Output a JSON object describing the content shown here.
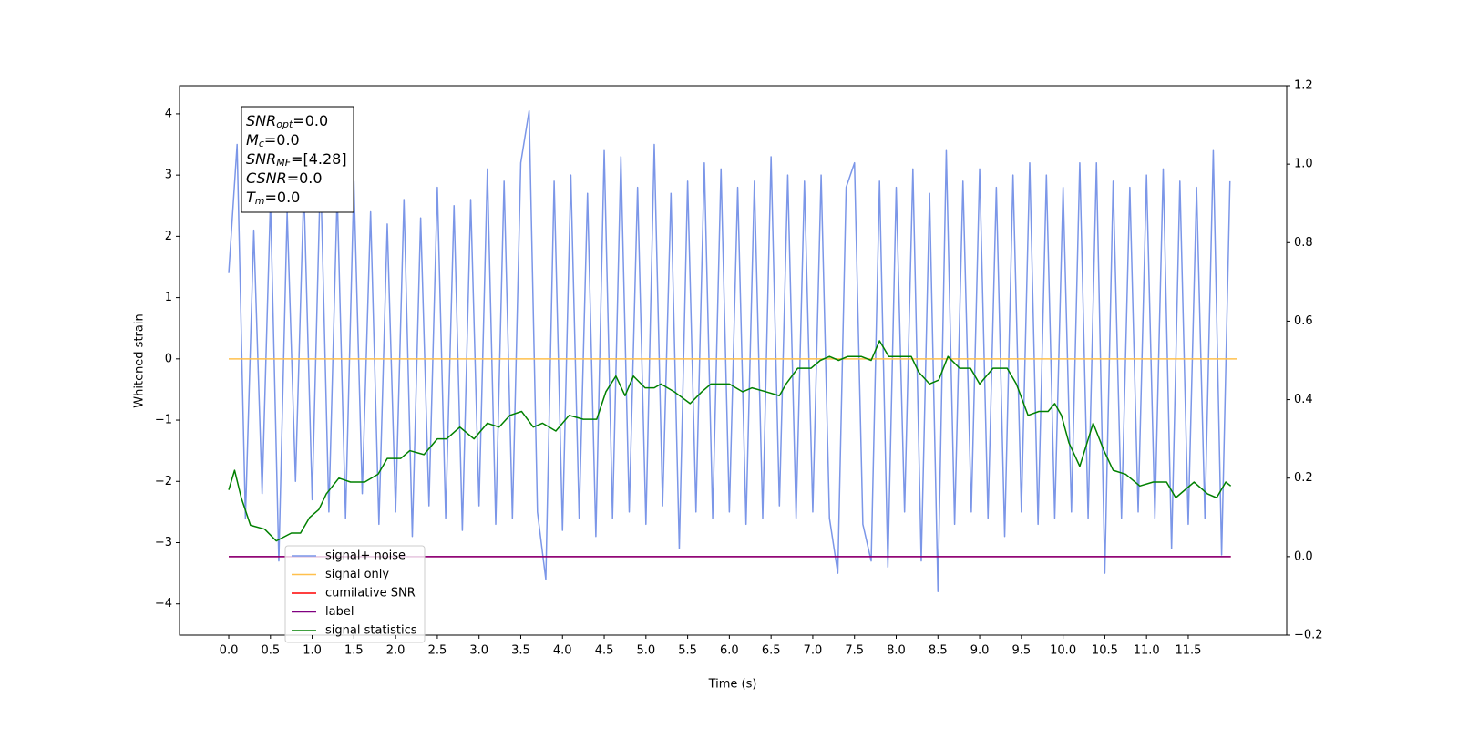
{
  "chart_data": {
    "type": "line",
    "xlabel": "Time (s)",
    "ylabel": "Whitened strain",
    "xlim": [
      -0.59,
      12.68
    ],
    "ylim": [
      -4.51,
      4.46
    ],
    "y2lim": [
      -0.2,
      1.2
    ],
    "xticks": [
      {
        "value": 0,
        "label": "0.0"
      },
      0.5,
      {
        "value": 1,
        "label": "1.0"
      },
      1.5,
      {
        "value": 2,
        "label": "2.0"
      },
      2.5,
      {
        "value": 3,
        "label": "3.0"
      },
      3.5,
      {
        "value": 4,
        "label": "4.0"
      },
      4.5,
      {
        "value": 5,
        "label": "5.0"
      },
      5.5,
      {
        "value": 6,
        "label": "6.0"
      },
      6.5,
      {
        "value": 7,
        "label": "7.0"
      },
      7.5,
      {
        "value": 8,
        "label": "8.0"
      },
      8.5,
      {
        "value": 9,
        "label": "9.0"
      },
      9.5,
      {
        "value": 10,
        "label": "10.0"
      },
      10.5,
      {
        "value": 11,
        "label": "11.0"
      },
      11.5
    ],
    "yticks": [
      {
        "value": -4,
        "label": "−4"
      },
      {
        "value": -3,
        "label": "−3"
      },
      {
        "value": -2,
        "label": "−2"
      },
      {
        "value": -1,
        "label": "−1"
      },
      0,
      1,
      2,
      3,
      4
    ],
    "y2ticks": [
      {
        "value": -0.2,
        "label": "−0.2"
      },
      {
        "value": 0,
        "label": "0.0"
      },
      0.2,
      0.4,
      0.6,
      0.8,
      {
        "value": 1,
        "label": "1.0"
      },
      1.2
    ],
    "legend": "lower left",
    "annotation": [
      {
        "main": "SNR",
        "sub": "opt",
        "rest": "=0.0"
      },
      {
        "main": "M",
        "sub": "c",
        "rest": "=0.0"
      },
      {
        "main": "SNR",
        "sub": "MF",
        "rest": "=[4.28]"
      },
      {
        "main": "CSNR",
        "sub": "",
        "rest": "=0.0"
      },
      {
        "main": "T",
        "sub": "m",
        "rest": "=0.0"
      }
    ],
    "series": [
      {
        "name": "signal+ noise",
        "color": "#7b96e8",
        "axis": "y",
        "x": [
          0,
          0.1,
          0.2,
          0.3,
          0.4,
          0.5,
          0.6,
          0.7,
          0.8,
          0.9,
          1,
          1.1,
          1.2,
          1.3,
          1.4,
          1.5,
          1.6,
          1.7,
          1.8,
          1.9,
          2,
          2.1,
          2.2,
          2.3,
          2.4,
          2.5,
          2.6,
          2.7,
          2.8,
          2.9,
          3,
          3.1,
          3.2,
          3.3,
          3.4,
          3.5,
          3.6,
          3.7,
          3.8,
          3.9,
          4,
          4.1,
          4.2,
          4.3,
          4.4,
          4.5,
          4.6,
          4.7,
          4.8,
          4.9,
          5,
          5.1,
          5.2,
          5.3,
          5.4,
          5.5,
          5.6,
          5.7,
          5.8,
          5.9,
          6,
          6.1,
          6.2,
          6.3,
          6.4,
          6.5,
          6.6,
          6.7,
          6.8,
          6.9,
          7,
          7.1,
          7.2,
          7.3,
          7.4,
          7.5,
          7.6,
          7.7,
          7.8,
          7.9,
          8,
          8.1,
          8.2,
          8.3,
          8.4,
          8.5,
          8.6,
          8.7,
          8.8,
          8.9,
          9,
          9.1,
          9.2,
          9.3,
          9.4,
          9.5,
          9.6,
          9.7,
          9.8,
          9.9,
          10,
          10.1,
          10.2,
          10.3,
          10.4,
          10.5,
          10.6,
          10.7,
          10.8,
          10.9,
          11,
          11.1,
          11.2,
          11.3,
          11.4,
          11.5,
          11.6,
          11.7,
          11.8,
          11.9,
          12
        ],
        "values": [
          1.4,
          3.5,
          -2.6,
          2.1,
          -2.2,
          2.6,
          -3.3,
          2.4,
          -2.0,
          2.8,
          -2.3,
          3.1,
          -2.5,
          2.7,
          -2.6,
          2.9,
          -2.2,
          2.4,
          -2.7,
          2.2,
          -2.5,
          2.6,
          -2.9,
          2.3,
          -2.4,
          2.8,
          -2.6,
          2.5,
          -2.8,
          2.6,
          -2.4,
          3.1,
          -2.7,
          2.9,
          -2.6,
          3.2,
          4.05,
          -2.5,
          -3.6,
          2.9,
          -2.8,
          3.0,
          -2.6,
          2.7,
          -2.9,
          3.4,
          -2.6,
          3.3,
          -2.5,
          2.8,
          -2.7,
          3.5,
          -2.4,
          2.7,
          -3.1,
          2.9,
          -2.5,
          3.2,
          -2.6,
          3.1,
          -2.5,
          2.8,
          -2.7,
          2.9,
          -2.6,
          3.3,
          -2.4,
          3.0,
          -2.6,
          2.9,
          -2.5,
          3.0,
          -2.6,
          -3.5,
          2.8,
          3.2,
          -2.7,
          -3.3,
          2.9,
          -3.4,
          2.8,
          -2.5,
          3.1,
          -3.3,
          2.7,
          -3.8,
          3.4,
          -2.7,
          2.9,
          -2.5,
          3.1,
          -2.6,
          2.8,
          -2.9,
          3.0,
          -2.5,
          3.2,
          -2.7,
          3.0,
          -2.6,
          2.8,
          -2.5,
          3.2,
          -2.6,
          3.2,
          -3.5,
          2.9,
          -2.6,
          2.8,
          -2.5,
          3.0,
          -2.6,
          3.1,
          -3.1,
          2.9,
          -2.7,
          2.8,
          -2.6,
          3.4,
          -3.2,
          2.9
        ]
      },
      {
        "name": "signal only",
        "color": "#ffc04d",
        "axis": "y",
        "x": [
          0,
          12.08
        ],
        "values": [
          0,
          0
        ]
      },
      {
        "name": "cumilative SNR",
        "color": "#ff0000",
        "axis": "y2",
        "x": [
          0,
          12.01
        ],
        "values": [
          0,
          0
        ]
      },
      {
        "name": "label",
        "color": "#800080",
        "axis": "y2",
        "x": [
          0,
          12.01
        ],
        "values": [
          0,
          0
        ]
      },
      {
        "name": "signal statistics",
        "color": "#008000",
        "axis": "y2",
        "x": [
          0,
          0.07,
          0.15,
          0.26,
          0.43,
          0.57,
          0.75,
          0.86,
          0.97,
          1.08,
          1.17,
          1.32,
          1.46,
          1.63,
          1.79,
          1.9,
          2.06,
          2.17,
          2.34,
          2.5,
          2.61,
          2.77,
          2.94,
          3.1,
          3.24,
          3.37,
          3.51,
          3.65,
          3.76,
          3.92,
          4.08,
          4.25,
          4.41,
          4.52,
          4.64,
          4.75,
          4.85,
          4.99,
          5.1,
          5.18,
          5.34,
          5.53,
          5.67,
          5.78,
          6,
          6.16,
          6.27,
          6.44,
          6.6,
          6.68,
          6.82,
          6.98,
          7.09,
          7.2,
          7.31,
          7.42,
          7.58,
          7.7,
          7.8,
          7.91,
          8.05,
          8.18,
          8.27,
          8.4,
          8.51,
          8.62,
          8.76,
          8.89,
          9,
          9.16,
          9.33,
          9.44,
          9.58,
          9.71,
          9.82,
          9.9,
          9.98,
          10.07,
          10.2,
          10.36,
          10.49,
          10.6,
          10.75,
          10.92,
          11.08,
          11.24,
          11.35,
          11.57,
          11.73,
          11.84,
          11.95,
          12.01
        ],
        "values": [
          0.17,
          0.22,
          0.15,
          0.08,
          0.07,
          0.04,
          0.06,
          0.06,
          0.1,
          0.12,
          0.16,
          0.2,
          0.19,
          0.19,
          0.21,
          0.25,
          0.25,
          0.27,
          0.26,
          0.3,
          0.3,
          0.33,
          0.3,
          0.34,
          0.33,
          0.36,
          0.37,
          0.33,
          0.34,
          0.32,
          0.36,
          0.35,
          0.35,
          0.42,
          0.46,
          0.41,
          0.46,
          0.43,
          0.43,
          0.44,
          0.42,
          0.39,
          0.42,
          0.44,
          0.44,
          0.42,
          0.43,
          0.42,
          0.41,
          0.44,
          0.48,
          0.48,
          0.5,
          0.51,
          0.5,
          0.51,
          0.51,
          0.5,
          0.55,
          0.51,
          0.51,
          0.51,
          0.47,
          0.44,
          0.45,
          0.51,
          0.48,
          0.48,
          0.44,
          0.48,
          0.48,
          0.44,
          0.36,
          0.37,
          0.37,
          0.39,
          0.36,
          0.29,
          0.23,
          0.34,
          0.27,
          0.22,
          0.21,
          0.18,
          0.19,
          0.19,
          0.15,
          0.19,
          0.16,
          0.15,
          0.19,
          0.18
        ]
      }
    ]
  }
}
